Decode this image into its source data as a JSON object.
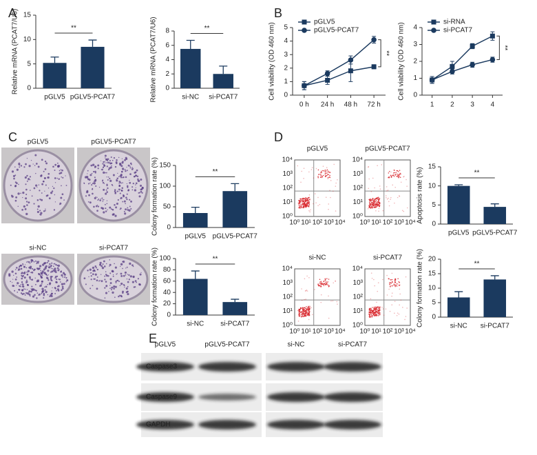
{
  "chart_data": [
    {
      "type": "bar",
      "categories": [
        "pGLV5",
        "pGLV5-PCAT7"
      ],
      "values": [
        5.2,
        8.5
      ],
      "errors": [
        1.2,
        1.4
      ],
      "color": "#1b3a5f",
      "y_label": "Relative mRNA (PCAT7/U6)",
      "ylim": [
        0,
        15
      ],
      "yticks": [
        0,
        5,
        10,
        15
      ],
      "annotation": "**"
    },
    {
      "type": "bar",
      "categories": [
        "si-NC",
        "si-PCAT7"
      ],
      "values": [
        5.5,
        2.0
      ],
      "errors": [
        1.2,
        1.1
      ],
      "color": "#1b3a5f",
      "y_label": "Relative mRNA (PCAT7/U6)",
      "ylim": [
        0,
        8
      ],
      "yticks": [
        0,
        2,
        4,
        6,
        8
      ],
      "annotation": "**"
    },
    {
      "type": "line",
      "categories": [
        "0 h",
        "24 h",
        "48 h",
        "72 h"
      ],
      "y_label": "Cell viability (OD 460 nm)",
      "ylim": [
        0,
        5
      ],
      "yticks": [
        0,
        1,
        2,
        3,
        4,
        5
      ],
      "annotation": "**",
      "series": [
        {
          "name": "pGLV5",
          "color": "#1b3a5f",
          "marker": "square",
          "values": [
            0.7,
            1.1,
            1.8,
            2.1
          ],
          "errors": [
            0.3,
            0.3,
            0.8,
            0.15
          ]
        },
        {
          "name": "pGLV5-PCAT7",
          "color": "#1b3a5f",
          "marker": "circle",
          "values": [
            0.7,
            1.6,
            2.6,
            4.1
          ],
          "errors": [
            0.3,
            0.2,
            0.3,
            0.25
          ]
        }
      ]
    },
    {
      "type": "line",
      "categories": [
        "1",
        "2",
        "3",
        "4"
      ],
      "y_label": "Cell viability (OD 460 nm)",
      "ylim": [
        0,
        4
      ],
      "yticks": [
        0,
        1,
        2,
        3,
        4
      ],
      "annotation": "**",
      "series": [
        {
          "name": "si-RNA",
          "color": "#1b3a5f",
          "marker": "square",
          "values": [
            0.9,
            1.7,
            2.9,
            3.5
          ],
          "errors": [
            0.2,
            0.3,
            0.15,
            0.25
          ]
        },
        {
          "name": "si-PCAT7",
          "color": "#1b3a5f",
          "marker": "circle",
          "values": [
            0.9,
            1.4,
            1.8,
            2.1
          ],
          "errors": [
            0.2,
            0.15,
            0.15,
            0.15
          ]
        }
      ]
    },
    {
      "type": "bar",
      "categories": [
        "pGLV5",
        "pGLV5-PCAT7"
      ],
      "values": [
        35,
        88
      ],
      "errors": [
        14,
        18
      ],
      "color": "#1b3a5f",
      "y_label": "Colony formation rate (%)",
      "ylim": [
        0,
        150
      ],
      "yticks": [
        0,
        50,
        100,
        150
      ],
      "annotation": "**"
    },
    {
      "type": "bar",
      "categories": [
        "si-NC",
        "si-PCAT7"
      ],
      "values": [
        64,
        23
      ],
      "errors": [
        14,
        5
      ],
      "color": "#1b3a5f",
      "y_label": "Colony formation rate (%)",
      "ylim": [
        0,
        100
      ],
      "yticks": [
        0,
        20,
        40,
        60,
        80,
        100
      ],
      "annotation": "**"
    },
    {
      "type": "bar",
      "categories": [
        "pGLV5",
        "pGLV5-PCAT7"
      ],
      "values": [
        10,
        4.5
      ],
      "errors": [
        0.3,
        0.8
      ],
      "color": "#1b3a5f",
      "y_label": "Apoptosis rate (%)",
      "ylim": [
        0,
        15
      ],
      "yticks": [
        0,
        5,
        10,
        15
      ],
      "annotation": "**"
    },
    {
      "type": "bar",
      "categories": [
        "si-NC",
        "si-PCAT7"
      ],
      "values": [
        6.8,
        13
      ],
      "errors": [
        2.0,
        1.3
      ],
      "color": "#1b3a5f",
      "y_label": "Colony formation rate (%)",
      "ylim": [
        0,
        20
      ],
      "yticks": [
        0,
        5,
        10,
        15,
        20
      ],
      "annotation": "**"
    }
  ],
  "panels": {
    "letters": [
      "A",
      "B",
      "C",
      "D",
      "E"
    ],
    "colony": {
      "labels": [
        "pGLV5",
        "pGLV5-PCAT7",
        "si-NC",
        "si-PCAT7"
      ]
    },
    "flow": {
      "labels": [
        "pGLV5",
        "pGLV5-PCAT7",
        "si-NC",
        "si-PCAT7"
      ],
      "ticks": [
        "10⁰",
        "10¹",
        "10²",
        "10³",
        "10⁴"
      ]
    },
    "blot": {
      "columns": [
        "pGLV5",
        "pGLV5-PCAT7",
        "si-NC",
        "si-PCAT7"
      ],
      "rows": [
        "Caspase3",
        "Caspase9",
        "GAPDH"
      ]
    }
  }
}
